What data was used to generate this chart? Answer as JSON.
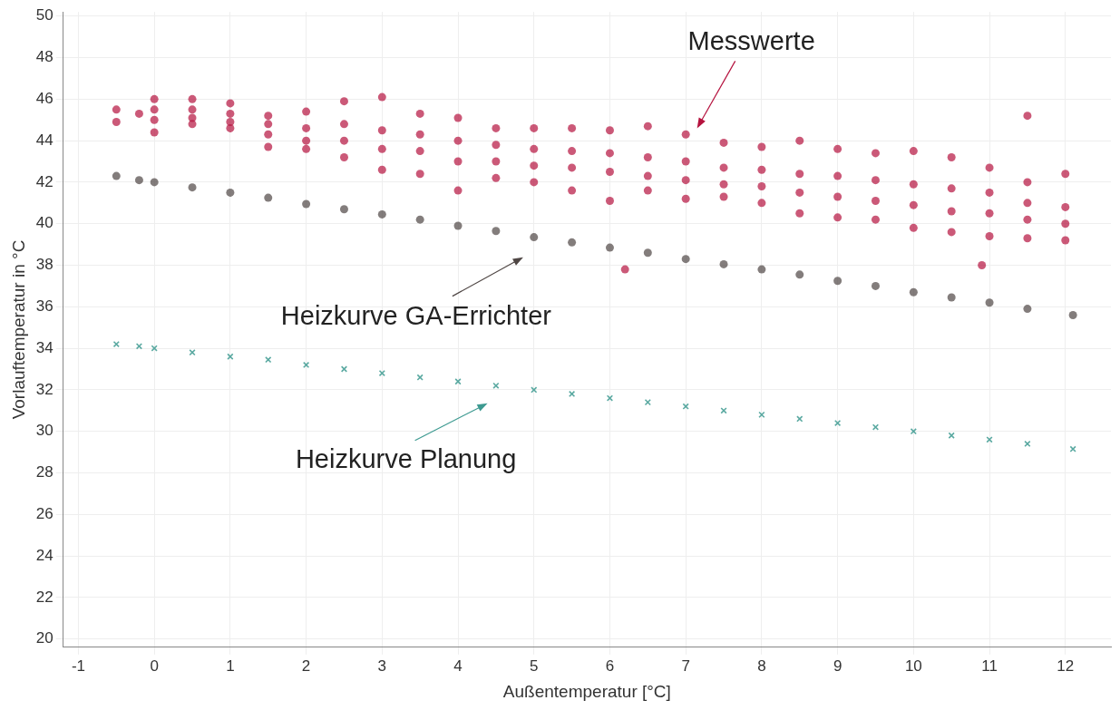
{
  "chart_data": {
    "type": "scatter",
    "xlabel": "Außentemperatur [°C]",
    "ylabel": "Vorlauftemperatur in °C",
    "xlim": [
      -1.2,
      12.6
    ],
    "xticks": [
      -1,
      0,
      1,
      2,
      3,
      4,
      5,
      6,
      7,
      8,
      9,
      10,
      11,
      12
    ],
    "ylim": [
      19.6,
      50.2
    ],
    "yticks": [
      20,
      22,
      24,
      26,
      28,
      30,
      32,
      34,
      36,
      38,
      40,
      42,
      44,
      46,
      48,
      50
    ],
    "grid": true,
    "legend": false,
    "annotations": [
      "Messwerte",
      "Heizkurve GA-Errichter",
      "Heizkurve Planung"
    ],
    "series": [
      {
        "color": "#b5123e",
        "marker": "circle",
        "x": [
          -0.5,
          -0.5,
          -0.2,
          0,
          0,
          0,
          0,
          0.5,
          0.5,
          0.5,
          0.5,
          1,
          1,
          1,
          1,
          1.5,
          1.5,
          1.5,
          1.5,
          2,
          2,
          2,
          2,
          2.5,
          2.5,
          2.5,
          2.5,
          3,
          3,
          3,
          3,
          3.5,
          3.5,
          3.5,
          3.5,
          4,
          4,
          4,
          4,
          4.5,
          4.5,
          4.5,
          4.5,
          5,
          5,
          5,
          5,
          5.5,
          5.5,
          5.5,
          5.5,
          6,
          6,
          6,
          6,
          6.2,
          6.5,
          6.5,
          6.5,
          6.5,
          7,
          7,
          7,
          7,
          7.5,
          7.5,
          7.5,
          7.5,
          8,
          8,
          8,
          8,
          8.5,
          8.5,
          8.5,
          8.5,
          9,
          9,
          9,
          9,
          9.5,
          9.5,
          9.5,
          9.5,
          10,
          10,
          10,
          10,
          10.5,
          10.5,
          10.5,
          10.5,
          10.9,
          11,
          11,
          11,
          11,
          11.5,
          11.5,
          11.5,
          11.5,
          11.5,
          12,
          12,
          12,
          12
        ],
        "values": [
          45.5,
          44.9,
          45.3,
          46,
          45,
          44.4,
          45.5,
          46,
          45.5,
          44.8,
          45.1,
          45.8,
          45.3,
          44.9,
          44.6,
          45.2,
          44.8,
          44.3,
          43.7,
          45.4,
          44.6,
          44,
          43.6,
          45.9,
          44.8,
          44,
          43.2,
          46.1,
          44.5,
          43.6,
          42.6,
          45.3,
          44.3,
          43.5,
          42.4,
          45.1,
          44,
          43,
          41.6,
          44.6,
          43.8,
          43,
          42.2,
          44.6,
          43.6,
          42.8,
          42,
          44.6,
          43.5,
          42.7,
          41.6,
          44.5,
          43.4,
          42.5,
          41.1,
          37.8,
          44.7,
          43.2,
          42.3,
          41.6,
          44.3,
          43,
          42.1,
          41.2,
          43.9,
          42.7,
          41.9,
          41.3,
          43.7,
          42.6,
          41.8,
          41,
          44,
          42.4,
          41.5,
          40.5,
          43.6,
          42.3,
          41.3,
          40.3,
          43.4,
          42.1,
          41.1,
          40.2,
          43.5,
          41.9,
          40.9,
          39.8,
          43.2,
          41.7,
          40.6,
          39.6,
          38,
          42.7,
          41.5,
          40.5,
          39.4,
          45.2,
          42,
          41,
          40.2,
          39.3,
          42.4,
          40.8,
          40,
          39.2
        ]
      },
      {
        "color": "#4f4644",
        "marker": "circle",
        "x": [
          -0.5,
          -0.2,
          0,
          0.5,
          1,
          1.5,
          2,
          2.5,
          3,
          3.5,
          4,
          4.5,
          5,
          5.5,
          6,
          6.5,
          7,
          7.5,
          8,
          8.5,
          9,
          9.5,
          10,
          10.5,
          11,
          11.5,
          12.1
        ],
        "values": [
          42.3,
          42.1,
          42,
          41.75,
          41.5,
          41.25,
          40.95,
          40.7,
          40.45,
          40.2,
          39.9,
          39.65,
          39.35,
          39.1,
          38.85,
          38.6,
          38.3,
          38.05,
          37.8,
          37.55,
          37.25,
          37,
          36.7,
          36.45,
          36.2,
          35.9,
          35.6
        ]
      },
      {
        "color": "#3d9a91",
        "marker": "cross",
        "x": [
          -0.5,
          -0.2,
          0,
          0.5,
          1,
          1.5,
          2,
          2.5,
          3,
          3.5,
          4,
          4.5,
          5,
          5.5,
          6,
          6.5,
          7,
          7.5,
          8,
          8.5,
          9,
          9.5,
          10,
          10.5,
          11,
          11.5,
          12.1
        ],
        "values": [
          34.2,
          34.1,
          34,
          33.8,
          33.6,
          33.45,
          33.2,
          33,
          32.8,
          32.6,
          32.4,
          32.2,
          32,
          31.8,
          31.6,
          31.4,
          31.2,
          31,
          30.8,
          30.6,
          30.4,
          30.2,
          30,
          29.8,
          29.6,
          29.4,
          29.15
        ]
      }
    ]
  }
}
